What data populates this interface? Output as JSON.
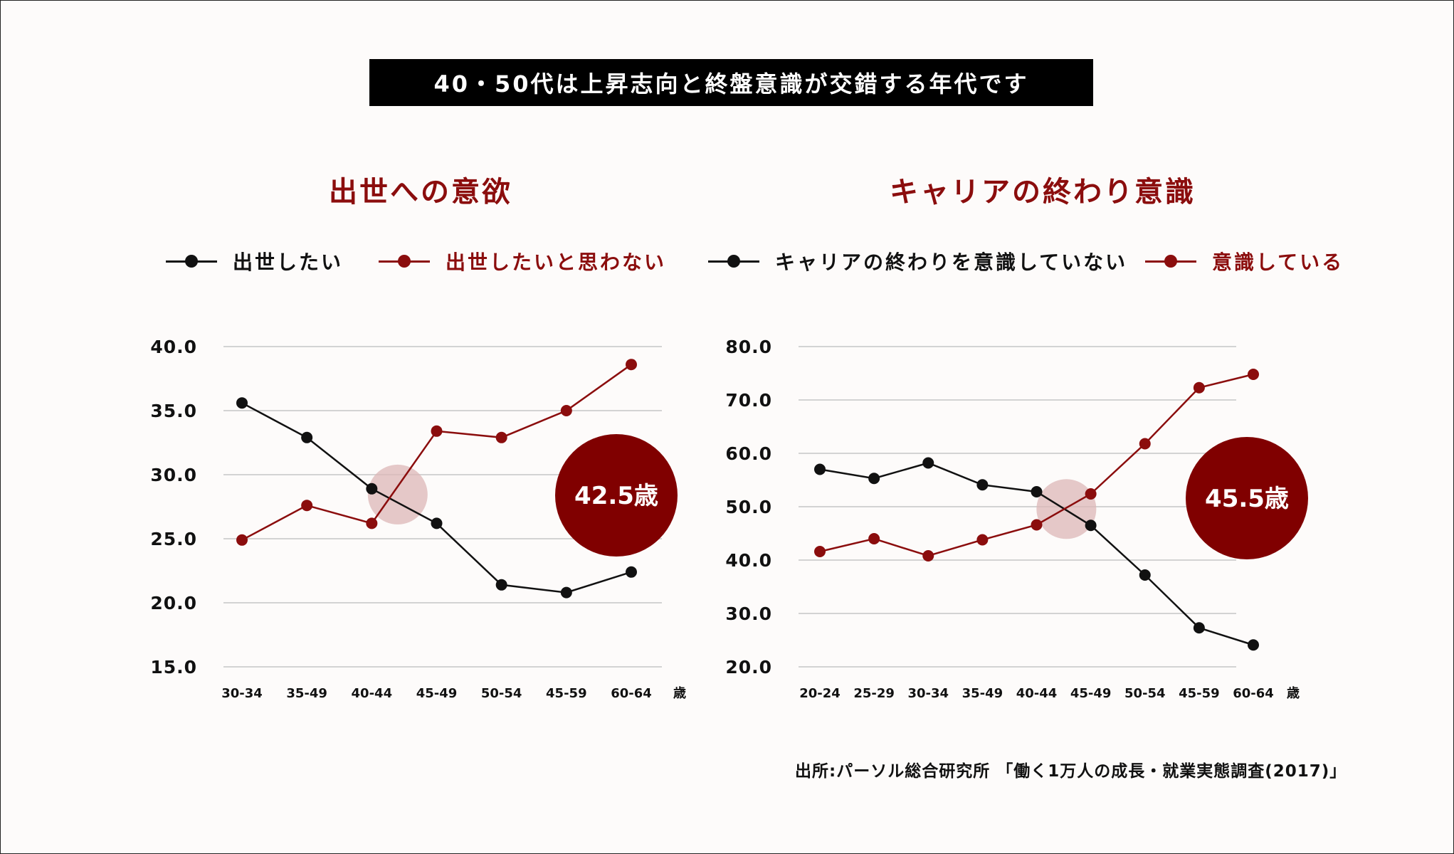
{
  "banner": "40・50代は上昇志向と終盤意識が交錯する年代です",
  "panels": [
    {
      "title": "出世への意欲",
      "legend": [
        "出世したい",
        "出世したいと思わない"
      ],
      "badge": "42.5歳"
    },
    {
      "title": "キャリアの終わり意識",
      "legend": [
        "キャリアの終わりを意識していない",
        "意識している"
      ],
      "badge": "45.5歳"
    }
  ],
  "source": "出所:パーソル総合研究所 「働く1万人の成長・就業実態調査(2017)」",
  "colors": {
    "black_series": "#111111",
    "red_series": "#8b0d0d",
    "badge": "#800000",
    "highlight": "#dcb7b7",
    "grid": "#d3d3d3"
  },
  "chart_data": [
    {
      "type": "line",
      "title": "出世への意欲",
      "categories": [
        "30-34",
        "35-49",
        "40-44",
        "45-49",
        "50-54",
        "45-59",
        "60-64"
      ],
      "xunit": "歳",
      "yticks": [
        "40.0",
        "35.0",
        "30.0",
        "25.0",
        "20.0",
        "15.0"
      ],
      "ylim": [
        15,
        40
      ],
      "grid": true,
      "legend_position": "top",
      "series": [
        {
          "name": "出世したい",
          "values": [
            35.6,
            32.9,
            28.9,
            26.2,
            21.4,
            20.8,
            22.4
          ]
        },
        {
          "name": "出世したいと思わない",
          "values": [
            24.9,
            27.6,
            26.2,
            33.4,
            32.9,
            35.0,
            38.6
          ]
        }
      ],
      "annotation": "42.5歳",
      "crossover_index": 2.4
    },
    {
      "type": "line",
      "title": "キャリアの終わり意識",
      "categories": [
        "20-24",
        "25-29",
        "30-34",
        "35-49",
        "40-44",
        "45-49",
        "50-54",
        "45-59",
        "60-64"
      ],
      "xunit": "歳",
      "yticks": [
        "80.0",
        "70.0",
        "60.0",
        "50.0",
        "40.0",
        "30.0",
        "20.0"
      ],
      "ylim": [
        20,
        80
      ],
      "grid": true,
      "legend_position": "top",
      "series": [
        {
          "name": "キャリアの終わりを意識していない",
          "values": [
            57.0,
            55.3,
            58.2,
            54.1,
            52.8,
            46.5,
            37.2,
            27.3,
            24.1
          ]
        },
        {
          "name": "意識している",
          "values": [
            41.6,
            44.0,
            40.8,
            43.8,
            46.6,
            52.4,
            61.8,
            72.3,
            74.8
          ]
        }
      ],
      "annotation": "45.5歳",
      "crossover_index": 4.55
    }
  ]
}
